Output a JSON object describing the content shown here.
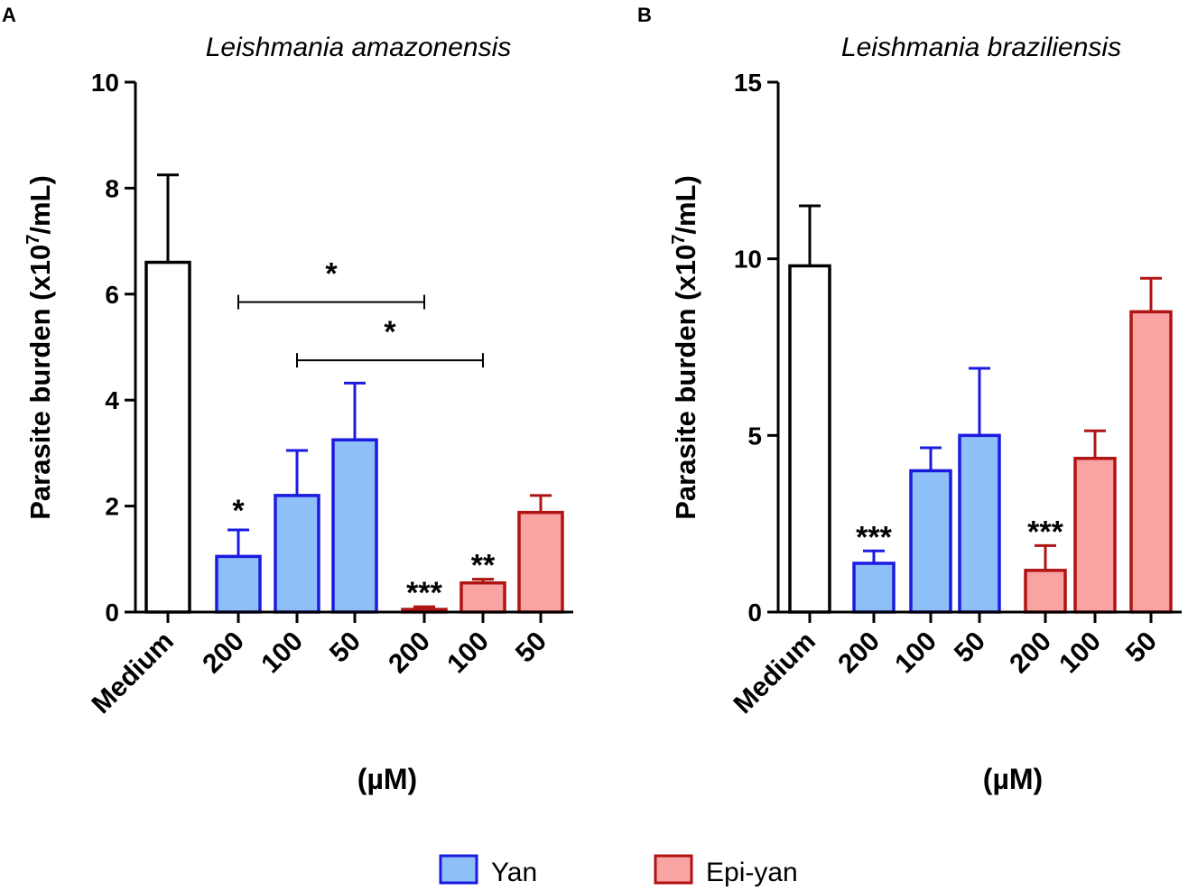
{
  "chart_data": [
    {
      "type": "bar",
      "panel": "A",
      "title": "Leishmania amazonensis",
      "ylabel": "Parasite burden (x10",
      "ylabel_sup": "7",
      "ylabel_end": "/mL)",
      "xlabel": "(µM)",
      "ylim": [
        0,
        10
      ],
      "yticks": [
        0,
        2,
        4,
        6,
        8,
        10
      ],
      "categories": [
        "Medium",
        "200",
        "100",
        "50",
        "200",
        "100",
        "50"
      ],
      "groups": [
        "control",
        "yan",
        "yan",
        "yan",
        "epi",
        "epi",
        "epi"
      ],
      "values": [
        6.6,
        1.05,
        2.2,
        3.25,
        0.05,
        0.55,
        1.88
      ],
      "errors": [
        1.65,
        0.5,
        0.85,
        1.07,
        0.05,
        0.07,
        0.32
      ],
      "significance": [
        "",
        "*",
        "",
        "",
        "***",
        "**",
        ""
      ],
      "comparisons": [
        {
          "from": 1,
          "to": 4,
          "label": "*",
          "y": 5.85
        },
        {
          "from": 2,
          "to": 5,
          "label": "*",
          "y": 4.75
        }
      ]
    },
    {
      "type": "bar",
      "panel": "B",
      "title": "Leishmania braziliensis",
      "ylabel": "Parasite burden (x10",
      "ylabel_sup": "7",
      "ylabel_end": "/mL)",
      "xlabel": "(µM)",
      "ylim": [
        0,
        15
      ],
      "yticks": [
        0,
        5,
        10,
        15
      ],
      "categories": [
        "Medium",
        "200",
        "100",
        "50",
        "200",
        "100",
        "50"
      ],
      "groups": [
        "control",
        "yan",
        "yan",
        "yan",
        "epi",
        "epi",
        "epi"
      ],
      "values": [
        9.8,
        1.38,
        4.0,
        5.0,
        1.18,
        4.35,
        8.5
      ],
      "errors": [
        1.7,
        0.35,
        0.65,
        1.9,
        0.7,
        0.78,
        0.95
      ],
      "significance": [
        "",
        "***",
        "",
        "",
        "***",
        "",
        ""
      ],
      "comparisons": []
    }
  ],
  "legend": [
    {
      "label": "Yan",
      "fill": "#8fbff7",
      "stroke": "#1b1be0"
    },
    {
      "label": "Epi-yan",
      "fill": "#f9a3a3",
      "stroke": "#b01313"
    }
  ],
  "colors": {
    "control_fill": "#ffffff",
    "control_stroke": "#000000",
    "yan_fill": "#8fbff7",
    "yan_stroke": "#1b1be0",
    "epi_fill": "#f9a3a3",
    "epi_stroke": "#b01313"
  }
}
